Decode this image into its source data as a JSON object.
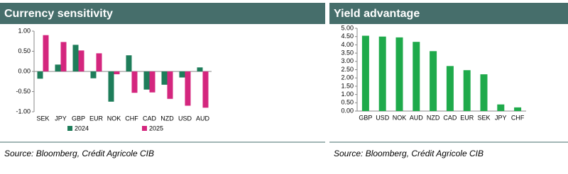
{
  "chart_data": [
    {
      "type": "grouped-bar",
      "title": "Currency sensitivity",
      "source": "Source: Bloomberg, Crédit Agricole CIB",
      "categories": [
        "SEK",
        "JPY",
        "GBP",
        "EUR",
        "NOK",
        "CHF",
        "CAD",
        "NZD",
        "USD",
        "AUD"
      ],
      "series": [
        {
          "name": "2024",
          "color": "#1e7d5a",
          "values": [
            -0.18,
            0.17,
            0.66,
            -0.17,
            -0.75,
            0.4,
            -0.45,
            -0.33,
            -0.15,
            0.1
          ]
        },
        {
          "name": "2025",
          "color": "#d4267e",
          "values": [
            0.9,
            0.73,
            0.52,
            0.45,
            -0.07,
            -0.53,
            -0.52,
            -0.68,
            -0.85,
            -0.9
          ]
        }
      ],
      "ylim": [
        -1,
        1
      ],
      "yticks": [
        {
          "value": -1,
          "label": "-1.00"
        },
        {
          "value": -0.5,
          "label": "-0.50"
        },
        {
          "value": 0,
          "label": "0.00"
        },
        {
          "value": 0.5,
          "label": "0.50"
        },
        {
          "value": 1,
          "label": "1.00"
        }
      ],
      "legend": "bottom"
    },
    {
      "type": "bar",
      "title": "Yield advantage",
      "source": "Source: Bloomberg, Crédit Agricole CIB",
      "categories": [
        "GBP",
        "USD",
        "NOK",
        "AUD",
        "NZD",
        "CAD",
        "EUR",
        "SEK",
        "JPY",
        "CHF"
      ],
      "values": [
        4.55,
        4.5,
        4.45,
        4.18,
        3.62,
        2.72,
        2.47,
        2.22,
        0.4,
        0.22
      ],
      "color": "#1faa4b",
      "ylim": [
        0,
        5
      ],
      "yticks": [
        {
          "value": 0,
          "label": "0.00"
        },
        {
          "value": 0.5,
          "label": "0.50"
        },
        {
          "value": 1,
          "label": "1.00"
        },
        {
          "value": 1.5,
          "label": "1.50"
        },
        {
          "value": 2,
          "label": "2.00"
        },
        {
          "value": 2.5,
          "label": "2.50"
        },
        {
          "value": 3,
          "label": "3.00"
        },
        {
          "value": 3.5,
          "label": "3.50"
        },
        {
          "value": 4,
          "label": "4.00"
        },
        {
          "value": 4.5,
          "label": "4.50"
        },
        {
          "value": 5,
          "label": "5.00"
        }
      ]
    }
  ]
}
